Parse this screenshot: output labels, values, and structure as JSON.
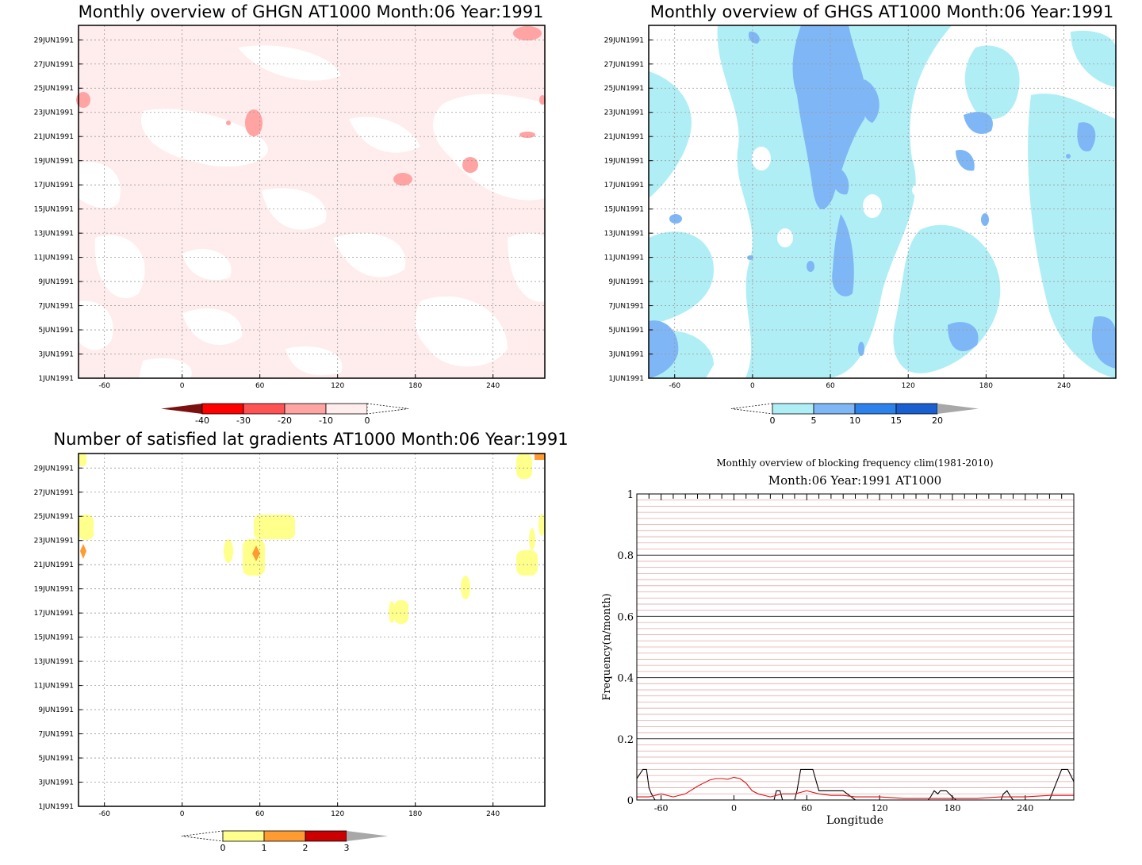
{
  "colors": {
    "ghgn": [
      "#ffecec",
      "#ffa3a3",
      "#ff5252",
      "#ff0000",
      "#7a1010"
    ],
    "ghgs": [
      "#b0eef6",
      "#7fb6f5",
      "#2c82ea",
      "#1a5fcf",
      "#a8a8a8"
    ],
    "grad": [
      "#ffff8c",
      "#ff9b30",
      "#cc0000",
      "#a8a8a8"
    ],
    "clim_line": "#dd1111",
    "freq_line": "#000000",
    "grid_red": "#e7a9a9"
  },
  "date_labels": [
    "1JUN1991",
    "3JUN1991",
    "5JUN1991",
    "7JUN1991",
    "9JUN1991",
    "11JUN1991",
    "13JUN1991",
    "15JUN1991",
    "17JUN1991",
    "19JUN1991",
    "21JUN1991",
    "23JUN1991",
    "25JUN1991",
    "27JUN1991",
    "29JUN1991"
  ],
  "lon_labels": [
    "-60",
    "0",
    "60",
    "120",
    "180",
    "240"
  ],
  "chart_data": [
    {
      "type": "heatmap",
      "title": "Monthly overview of GHGN AT1000 Month:06 Year:1991",
      "x_ticks": [
        -60,
        0,
        60,
        120,
        180,
        240
      ],
      "xlim": [
        -80,
        280
      ],
      "colorbar": {
        "labels": [
          "-40",
          "-30",
          "-20",
          "-10",
          "0"
        ]
      },
      "shaded_regions": [
        {
          "lon": 45,
          "day": 22,
          "level": "-20"
        },
        {
          "lon": 220,
          "day": 18,
          "level": "-20"
        },
        {
          "lon": 170,
          "day": 17,
          "level": "-20"
        },
        {
          "lon": -75,
          "day": 24,
          "level": "-20"
        },
        {
          "lon": 270,
          "day": 29.5,
          "level": "-20"
        }
      ]
    },
    {
      "type": "heatmap",
      "title": "Monthly overview of GHGS AT1000 Month:06 Year:1991",
      "x_ticks": [
        -60,
        0,
        60,
        120,
        180,
        240
      ],
      "xlim": [
        -80,
        280
      ],
      "colorbar": {
        "labels": [
          "0",
          "5",
          "10",
          "15",
          "20"
        ]
      },
      "shaded_regions": [
        {
          "lon": 60,
          "day": 20,
          "level": "5"
        },
        {
          "lon": 65,
          "day": 8,
          "level": "5"
        },
        {
          "lon": 270,
          "day": 3,
          "level": "5"
        },
        {
          "lon": -70,
          "day": 3,
          "level": "5"
        },
        {
          "lon": 165,
          "day": 3,
          "level": "5"
        }
      ]
    },
    {
      "type": "heatmap",
      "title": "Number of satisfied lat gradients AT1000 Month:06 Year:1991",
      "x_ticks": [
        -60,
        0,
        60,
        120,
        180,
        240
      ],
      "xlim": [
        -80,
        280
      ],
      "colorbar": {
        "labels": [
          "0",
          "1",
          "2",
          "3"
        ]
      },
      "shaded_regions": [
        {
          "lon": 75,
          "day": 24,
          "level": "1"
        },
        {
          "lon": 57,
          "day": 22,
          "level": "2"
        },
        {
          "lon": 168,
          "day": 17,
          "level": "1"
        },
        {
          "lon": 220,
          "day": 19,
          "level": "1"
        },
        {
          "lon": 265,
          "day": 21,
          "level": "1"
        },
        {
          "lon": 265,
          "day": 29,
          "level": "1"
        },
        {
          "lon": -75,
          "day": 22,
          "level": "2"
        }
      ]
    },
    {
      "type": "line",
      "title": "Monthly overview of blocking frequency clim(1981-2010)",
      "subtitle": "Month:06 Year:1991  AT1000",
      "xlabel": "Longitude",
      "ylabel": "Frequency(n/month)",
      "x_ticks": [
        -60,
        0,
        60,
        120,
        180,
        240
      ],
      "y_ticks": [
        0,
        0.2,
        0.4,
        0.6,
        0.8,
        1
      ],
      "xlim": [
        -80,
        280
      ],
      "ylim": [
        0,
        1
      ],
      "series": [
        {
          "x": [
            -80,
            -75,
            -72,
            -70,
            -68,
            -65,
            -60,
            -50,
            -40,
            -30,
            -20,
            -10,
            0,
            10,
            20,
            30,
            33,
            35,
            38,
            40,
            45,
            50,
            52,
            55,
            60,
            65,
            70,
            80,
            90,
            100,
            110,
            120,
            130,
            140,
            150,
            160,
            162,
            165,
            168,
            170,
            175,
            180,
            183,
            185,
            190,
            200,
            210,
            220,
            222,
            225,
            228,
            230,
            240,
            250,
            260,
            265,
            270,
            275,
            280
          ],
          "y": [
            0.07,
            0.1,
            0.1,
            0.04,
            0.02,
            0,
            0,
            0,
            0,
            0,
            0,
            0,
            0,
            0,
            0,
            0,
            0,
            0.03,
            0.03,
            0,
            0,
            0,
            0.03,
            0.1,
            0.1,
            0.1,
            0.03,
            0.03,
            0.03,
            0,
            0,
            0,
            0,
            0,
            0,
            0,
            0.01,
            0.03,
            0.02,
            0.03,
            0.03,
            0.01,
            0,
            0,
            0,
            0,
            0,
            0,
            0.02,
            0.03,
            0.01,
            0,
            0,
            0,
            0,
            0.05,
            0.1,
            0.1,
            0.06
          ]
        },
        {
          "x": [
            -80,
            -70,
            -60,
            -50,
            -40,
            -30,
            -20,
            -15,
            -10,
            -5,
            0,
            5,
            10,
            15,
            20,
            30,
            40,
            50,
            55,
            60,
            70,
            80,
            90,
            100,
            120,
            140,
            160,
            180,
            200,
            220,
            240,
            260,
            280
          ],
          "y": [
            0.01,
            0.01,
            0.02,
            0.01,
            0.02,
            0.045,
            0.065,
            0.07,
            0.07,
            0.068,
            0.074,
            0.07,
            0.055,
            0.03,
            0.02,
            0.01,
            0.02,
            0.02,
            0.025,
            0.03,
            0.02,
            0.015,
            0.015,
            0.01,
            0.01,
            0.005,
            0.005,
            0.005,
            0.005,
            0.01,
            0.01,
            0.015,
            0.015
          ]
        }
      ]
    }
  ]
}
